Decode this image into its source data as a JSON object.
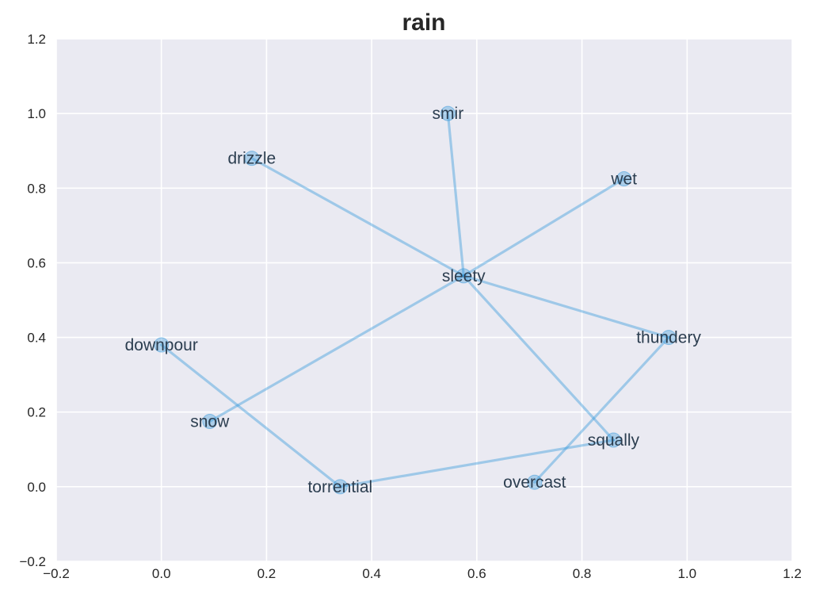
{
  "chart_data": {
    "type": "scatter",
    "title": "rain",
    "xlabel": "",
    "ylabel": "",
    "xlim": [
      -0.2,
      1.2
    ],
    "ylim": [
      -0.2,
      1.2
    ],
    "x_ticks": [
      -0.2,
      0.0,
      0.2,
      0.4,
      0.6,
      0.8,
      1.0,
      1.2
    ],
    "y_ticks": [
      -0.2,
      0.0,
      0.2,
      0.4,
      0.6,
      0.8,
      1.0,
      1.2
    ],
    "x_tick_labels": [
      "−0.2",
      "0.0",
      "0.2",
      "0.4",
      "0.6",
      "0.8",
      "1.0",
      "1.2"
    ],
    "y_tick_labels": [
      "−0.2",
      "0.0",
      "0.2",
      "0.4",
      "0.6",
      "0.8",
      "1.0",
      "1.2"
    ],
    "grid": true,
    "colors": {
      "plot_background": "#eaeaf2",
      "grid": "#ffffff",
      "edge": "#3498db",
      "node": "#3498db",
      "label": "#2c3e50"
    },
    "nodes": [
      {
        "label": "smir",
        "x": 0.545,
        "y": 1.0
      },
      {
        "label": "drizzle",
        "x": 0.172,
        "y": 0.88
      },
      {
        "label": "wet",
        "x": 0.88,
        "y": 0.825
      },
      {
        "label": "sleety",
        "x": 0.575,
        "y": 0.565
      },
      {
        "label": "thundery",
        "x": 0.965,
        "y": 0.4
      },
      {
        "label": "downpour",
        "x": 0.0,
        "y": 0.38
      },
      {
        "label": "snow",
        "x": 0.092,
        "y": 0.175
      },
      {
        "label": "squally",
        "x": 0.86,
        "y": 0.125
      },
      {
        "label": "overcast",
        "x": 0.71,
        "y": 0.012
      },
      {
        "label": "torrential",
        "x": 0.34,
        "y": 0.0
      }
    ],
    "edges": [
      [
        "sleety",
        "smir"
      ],
      [
        "sleety",
        "drizzle"
      ],
      [
        "sleety",
        "wet"
      ],
      [
        "sleety",
        "thundery"
      ],
      [
        "sleety",
        "snow"
      ],
      [
        "sleety",
        "squally"
      ],
      [
        "downpour",
        "torrential"
      ],
      [
        "torrential",
        "squally"
      ],
      [
        "thundery",
        "overcast"
      ]
    ]
  }
}
